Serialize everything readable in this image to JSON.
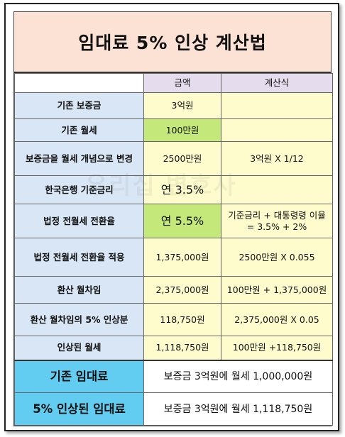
{
  "title": "임대료 5% 인상 계산법",
  "header": {
    "col1": "",
    "col2": "금액",
    "col3": "계산식"
  },
  "rows": [
    {
      "label": "기존 보증금",
      "amount": "3억원",
      "formula": ""
    },
    {
      "label": "기존 월세",
      "amount": "100만원",
      "formula": ""
    },
    {
      "label": "보증금을 월세 개념으로 변경",
      "amount": "2500만원",
      "formula": "3억원 X 1/12"
    },
    {
      "label": "한국은행 기준금리",
      "amount": "연 3.5%",
      "formula": ""
    },
    {
      "label": "법정 전월세 전환율",
      "amount": "연 5.5%",
      "formula": "기준금리 + 대통령령 이율 = 3.5% + 2%"
    },
    {
      "label": "법정 전월세 전환율 적용",
      "amount": "1,375,000원",
      "formula": "2500만원 X 0.055"
    },
    {
      "label": "환산 월차임",
      "amount": "2,375,000원",
      "formula": "100만원 + 1,375,000원"
    },
    {
      "label": "환산 월차임의 5% 인상분",
      "amount": "118,750원",
      "formula": "2,375,000원 X 0.05"
    },
    {
      "label": "인상된 월세",
      "amount": "1,118,750원",
      "formula": "100만원 +118,750원"
    }
  ],
  "summary": [
    {
      "label": "기존 임대료",
      "value": "보증금 3억원에 월세 1,000,000원"
    },
    {
      "label": "5% 인상된 임대료",
      "value": "보증금 3억원에 월세 1,118,750원"
    }
  ],
  "watermark": "우리집 변호사",
  "colors": {
    "title_bg": "#fbe2d5",
    "label_bg": "#d9e6f5",
    "value_bg": "#fefccc",
    "highlight": "#c4e87a",
    "summary_label_bg": "#63cdf1",
    "header_bg": "#e5dcee"
  }
}
